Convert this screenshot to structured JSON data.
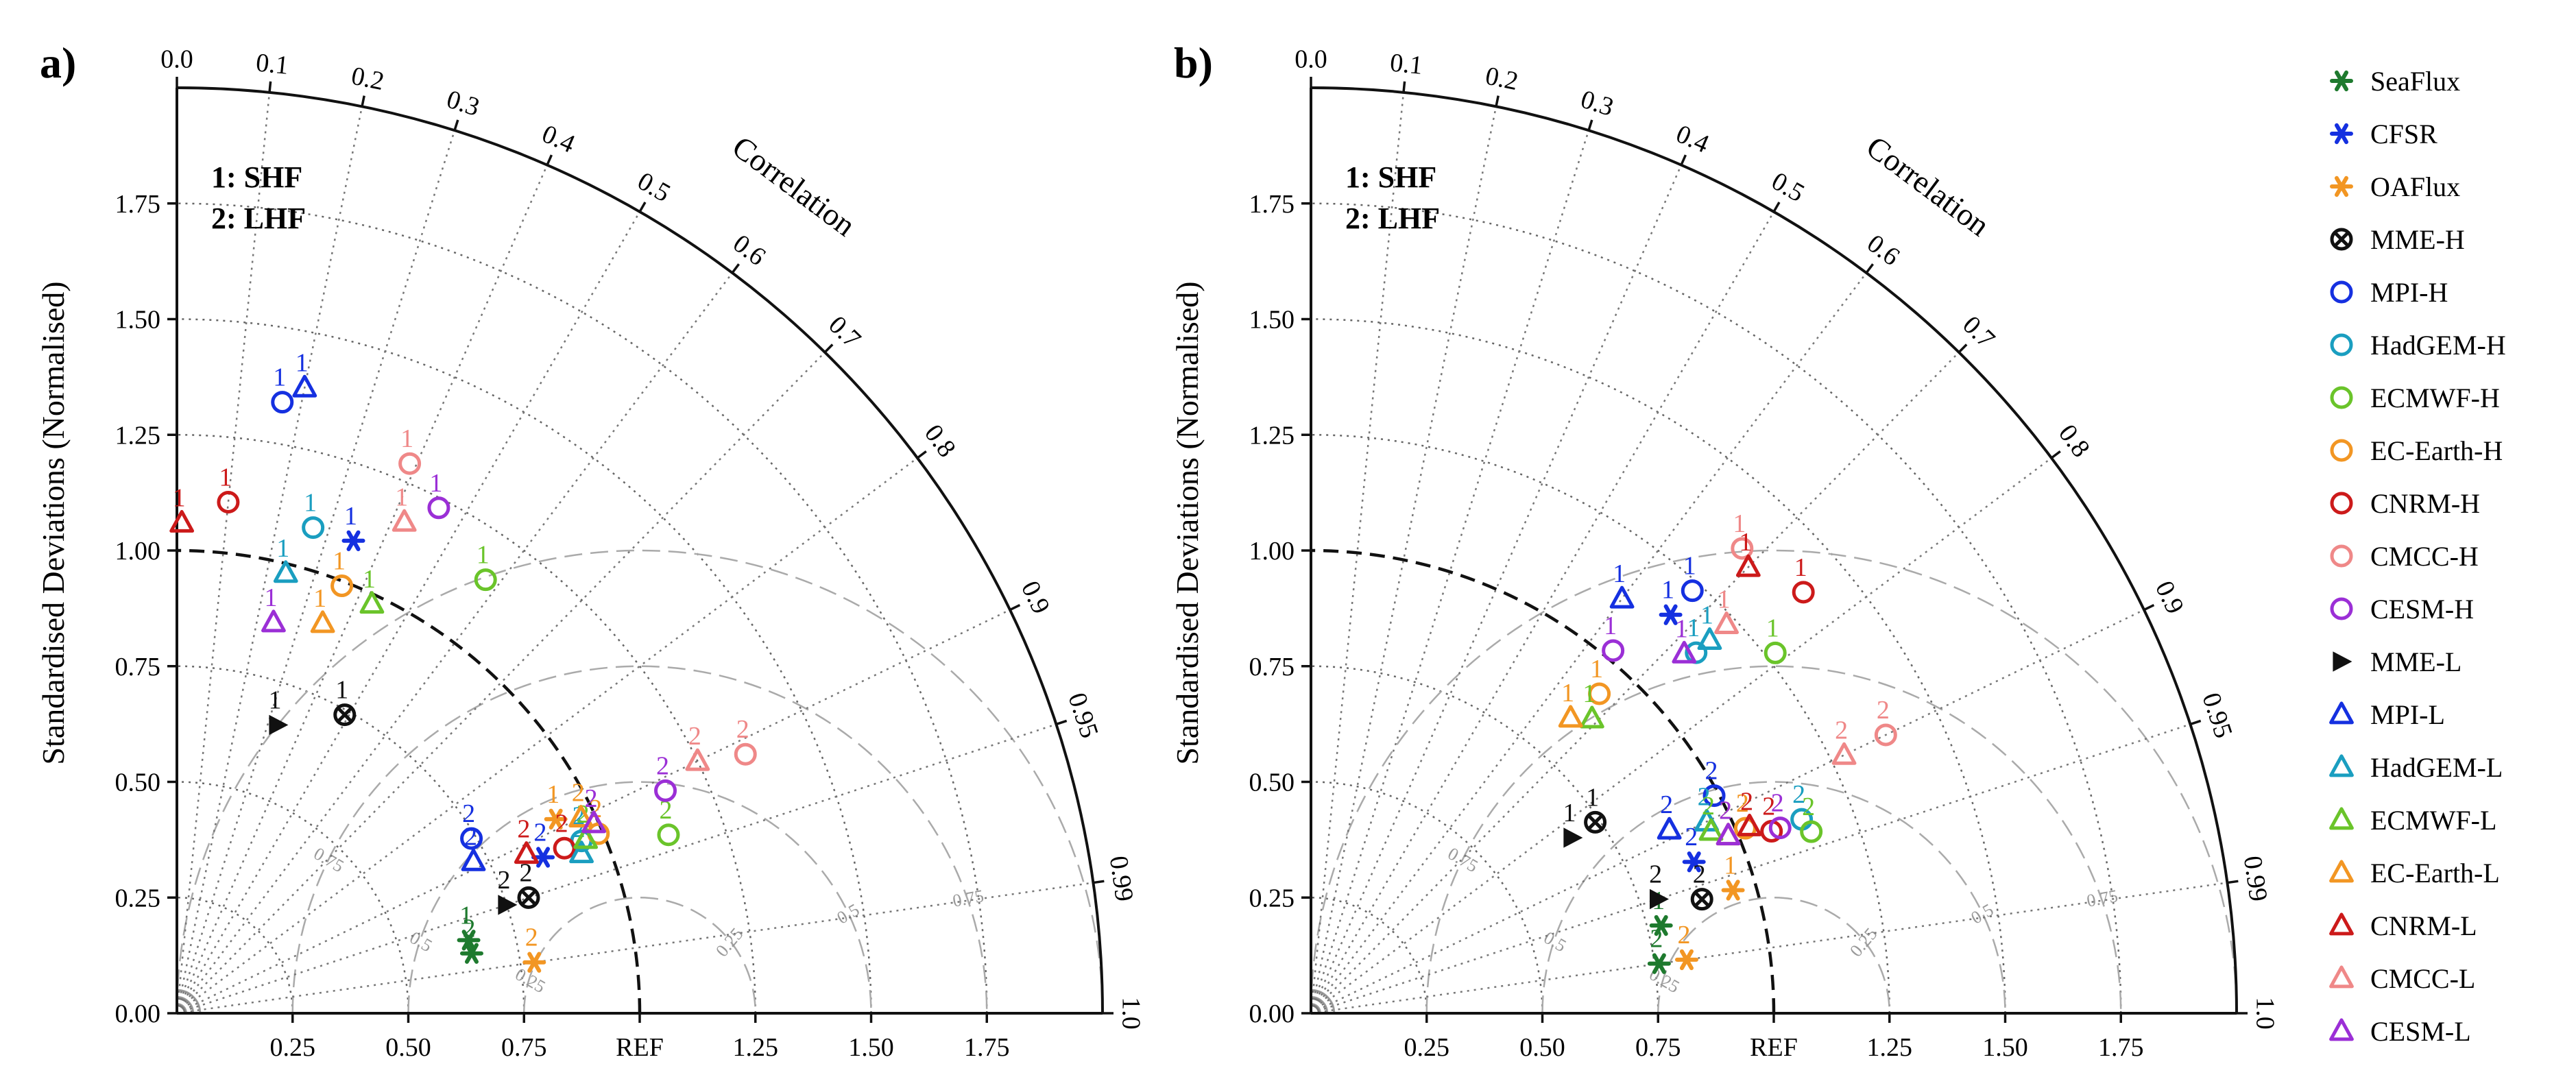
{
  "title": "",
  "figure": {
    "panels": [
      "a)",
      "b)"
    ],
    "ylabel": "Standardised Deviations (Normalised)",
    "correlation_label": "Correlation",
    "ref_label": "REF",
    "notes": [
      "1: SHF",
      "2: LHF"
    ],
    "std_ticks": [
      "0.00",
      "0.25",
      "0.50",
      "0.75",
      "1.00",
      "1.25",
      "1.50",
      "1.75"
    ],
    "x_ticks": [
      "0.25",
      "0.50",
      "0.75",
      "1.00",
      "1.25",
      "1.50",
      "1.75"
    ],
    "corr_ticks": [
      "0.0",
      "0.1",
      "0.2",
      "0.3",
      "0.4",
      "0.5",
      "0.6",
      "0.7",
      "0.8",
      "0.9",
      "0.95",
      "0.99",
      "1.0"
    ],
    "rmsd_labels": [
      "0.25",
      "0.5",
      "0.75"
    ]
  },
  "chart_data": [
    {
      "type": "taylor",
      "panel": "a)",
      "xlabel": "",
      "ylabel": "Standardised Deviations (Normalised)",
      "xlim": [
        0,
        2.0
      ],
      "ylim": [
        0,
        2.0
      ],
      "points": [
        {
          "model": "SeaFlux",
          "var": "1",
          "std": 0.65,
          "corr": 0.97
        },
        {
          "model": "SeaFlux",
          "var": "2",
          "std": 0.65,
          "corr": 0.98
        },
        {
          "model": "CFSR",
          "var": "1",
          "std": 1.09,
          "corr": 0.35
        },
        {
          "model": "CFSR",
          "var": "2",
          "std": 0.86,
          "corr": 0.92
        },
        {
          "model": "OAFlux",
          "var": "1",
          "std": 0.92,
          "corr": 0.89
        },
        {
          "model": "OAFlux",
          "var": "2",
          "std": 0.78,
          "corr": 0.99
        },
        {
          "model": "MME-H",
          "var": "1",
          "std": 0.74,
          "corr": 0.49
        },
        {
          "model": "MME-H",
          "var": "2",
          "std": 0.8,
          "corr": 0.95
        },
        {
          "model": "MPI-H",
          "var": "1",
          "std": 1.34,
          "corr": 0.17
        },
        {
          "model": "MPI-H",
          "var": "2",
          "std": 0.74,
          "corr": 0.86
        },
        {
          "model": "HadGEM-H",
          "var": "1",
          "std": 1.09,
          "corr": 0.27
        },
        {
          "model": "HadGEM-H",
          "var": "2",
          "std": 0.95,
          "corr": 0.92
        },
        {
          "model": "ECMWF-H",
          "var": "1",
          "std": 1.15,
          "corr": 0.58
        },
        {
          "model": "ECMWF-H",
          "var": "2",
          "std": 1.13,
          "corr": 0.94
        },
        {
          "model": "EC-Earth-H",
          "var": "1",
          "std": 0.99,
          "corr": 0.36
        },
        {
          "model": "EC-Earth-H",
          "var": "2",
          "std": 0.99,
          "corr": 0.92
        },
        {
          "model": "CNRM-H",
          "var": "1",
          "std": 1.11,
          "corr": 0.1
        },
        {
          "model": "CNRM-H",
          "var": "2",
          "std": 0.91,
          "corr": 0.92
        },
        {
          "model": "CMCC-H",
          "var": "1",
          "std": 1.29,
          "corr": 0.39
        },
        {
          "model": "CMCC-H",
          "var": "2",
          "std": 1.35,
          "corr": 0.91
        },
        {
          "model": "CESM-H",
          "var": "1",
          "std": 1.23,
          "corr": 0.46
        },
        {
          "model": "CESM-H",
          "var": "2",
          "std": 1.16,
          "corr": 0.91
        },
        {
          "model": "MME-L",
          "var": "1",
          "std": 0.66,
          "corr": 0.33
        },
        {
          "model": "MME-L",
          "var": "2",
          "std": 0.75,
          "corr": 0.95
        },
        {
          "model": "MPI-L",
          "var": "1",
          "std": 1.38,
          "corr": 0.2
        },
        {
          "model": "MPI-L",
          "var": "2",
          "std": 0.72,
          "corr": 0.89
        },
        {
          "model": "HadGEM-L",
          "var": "1",
          "std": 0.98,
          "corr": 0.24
        },
        {
          "model": "HadGEM-L",
          "var": "2",
          "std": 0.94,
          "corr": 0.93
        },
        {
          "model": "ECMWF-L",
          "var": "1",
          "std": 0.98,
          "corr": 0.43
        },
        {
          "model": "ECMWF-L",
          "var": "2",
          "std": 0.96,
          "corr": 0.92
        },
        {
          "model": "EC-Earth-L",
          "var": "1",
          "std": 0.9,
          "corr": 0.35
        },
        {
          "model": "EC-Earth-L",
          "var": "2",
          "std": 0.97,
          "corr": 0.9
        },
        {
          "model": "CNRM-L",
          "var": "1",
          "std": 1.06,
          "corr": 0.01
        },
        {
          "model": "CNRM-L",
          "var": "2",
          "std": 0.83,
          "corr": 0.91
        },
        {
          "model": "CMCC-L",
          "var": "1",
          "std": 1.17,
          "corr": 0.42
        },
        {
          "model": "CMCC-L",
          "var": "2",
          "std": 1.25,
          "corr": 0.9
        },
        {
          "model": "CESM-L",
          "var": "1",
          "std": 0.87,
          "corr": 0.24
        },
        {
          "model": "CESM-L",
          "var": "2",
          "std": 0.99,
          "corr": 0.91
        }
      ]
    },
    {
      "type": "taylor",
      "panel": "b)",
      "xlabel": "",
      "ylabel": "Standardised Deviations (Normalised)",
      "xlim": [
        0,
        2.0
      ],
      "ylim": [
        0,
        2.0
      ],
      "points": [
        {
          "model": "SeaFlux",
          "var": "1",
          "std": 0.78,
          "corr": 0.97
        },
        {
          "model": "SeaFlux",
          "var": "2",
          "std": 0.76,
          "corr": 0.99
        },
        {
          "model": "CFSR",
          "var": "1",
          "std": 1.16,
          "corr": 0.67
        },
        {
          "model": "CFSR",
          "var": "2",
          "std": 0.89,
          "corr": 0.93
        },
        {
          "model": "OAFlux",
          "var": "1",
          "std": 0.95,
          "corr": 0.96
        },
        {
          "model": "OAFlux",
          "var": "2",
          "std": 0.82,
          "corr": 0.99
        },
        {
          "model": "MME-H",
          "var": "1",
          "std": 0.74,
          "corr": 0.83
        },
        {
          "model": "MME-H",
          "var": "2",
          "std": 0.88,
          "corr": 0.96
        },
        {
          "model": "MPI-H",
          "var": "1",
          "std": 1.23,
          "corr": 0.67
        },
        {
          "model": "MPI-H",
          "var": "2",
          "std": 0.99,
          "corr": 0.88
        },
        {
          "model": "HadGEM-H",
          "var": "1",
          "std": 1.14,
          "corr": 0.73
        },
        {
          "model": "HadGEM-H",
          "var": "2",
          "std": 1.14,
          "corr": 0.93
        },
        {
          "model": "ECMWF-H",
          "var": "1",
          "std": 1.27,
          "corr": 0.79
        },
        {
          "model": "ECMWF-H",
          "var": "2",
          "std": 1.15,
          "corr": 0.94
        },
        {
          "model": "EC-Earth-H",
          "var": "1",
          "std": 0.93,
          "corr": 0.67
        },
        {
          "model": "EC-Earth-H",
          "var": "2",
          "std": 1.02,
          "corr": 0.92
        },
        {
          "model": "CNRM-H",
          "var": "1",
          "std": 1.4,
          "corr": 0.76
        },
        {
          "model": "CNRM-H",
          "var": "2",
          "std": 1.07,
          "corr": 0.93
        },
        {
          "model": "CMCC-H",
          "var": "1",
          "std": 1.37,
          "corr": 0.68
        },
        {
          "model": "CMCC-H",
          "var": "2",
          "std": 1.38,
          "corr": 0.9
        },
        {
          "model": "CESM-H",
          "var": "1",
          "std": 1.02,
          "corr": 0.64
        },
        {
          "model": "CESM-H",
          "var": "2",
          "std": 1.09,
          "corr": 0.93
        },
        {
          "model": "MME-L",
          "var": "1",
          "std": 0.68,
          "corr": 0.83
        },
        {
          "model": "MME-L",
          "var": "2",
          "std": 0.79,
          "corr": 0.95
        },
        {
          "model": "MPI-L",
          "var": "1",
          "std": 1.12,
          "corr": 0.6
        },
        {
          "model": "MPI-L",
          "var": "2",
          "std": 0.87,
          "corr": 0.89
        },
        {
          "model": "HadGEM-L",
          "var": "1",
          "std": 1.18,
          "corr": 0.73
        },
        {
          "model": "HadGEM-L",
          "var": "2",
          "std": 0.95,
          "corr": 0.9
        },
        {
          "model": "ECMWF-L",
          "var": "1",
          "std": 0.88,
          "corr": 0.69
        },
        {
          "model": "ECMWF-L",
          "var": "2",
          "std": 0.95,
          "corr": 0.91
        },
        {
          "model": "EC-Earth-L",
          "var": "1",
          "std": 0.85,
          "corr": 0.66
        },
        {
          "model": "EC-Earth-L",
          "var": "2",
          "std": 0.98,
          "corr": 0.92
        },
        {
          "model": "CNRM-L",
          "var": "1",
          "std": 1.35,
          "corr": 0.7
        },
        {
          "model": "CNRM-L",
          "var": "2",
          "std": 1.03,
          "corr": 0.92
        },
        {
          "model": "CMCC-L",
          "var": "1",
          "std": 1.23,
          "corr": 0.73
        },
        {
          "model": "CMCC-L",
          "var": "2",
          "std": 1.28,
          "corr": 0.9
        },
        {
          "model": "CESM-L",
          "var": "1",
          "std": 1.12,
          "corr": 0.72
        },
        {
          "model": "CESM-L",
          "var": "2",
          "std": 0.98,
          "corr": 0.92
        }
      ]
    }
  ],
  "legend": {
    "position": "right",
    "entries": [
      {
        "label": "SeaFlux",
        "marker": "asterisk",
        "color": "#1e7a2e"
      },
      {
        "label": "CFSR",
        "marker": "asterisk",
        "color": "#1530e0"
      },
      {
        "label": "OAFlux",
        "marker": "asterisk",
        "color": "#f29623"
      },
      {
        "label": "MME-H",
        "marker": "otimes",
        "color": "#111111"
      },
      {
        "label": "MPI-H",
        "marker": "circle",
        "color": "#1530e0"
      },
      {
        "label": "HadGEM-H",
        "marker": "circle",
        "color": "#1a9ec0"
      },
      {
        "label": "ECMWF-H",
        "marker": "circle",
        "color": "#6ac42a"
      },
      {
        "label": "EC-Earth-H",
        "marker": "circle",
        "color": "#f29623"
      },
      {
        "label": "CNRM-H",
        "marker": "circle",
        "color": "#cc1a1a"
      },
      {
        "label": "CMCC-H",
        "marker": "circle",
        "color": "#ef8888"
      },
      {
        "label": "CESM-H",
        "marker": "circle",
        "color": "#9b2fd6"
      },
      {
        "label": "MME-L",
        "marker": "play",
        "color": "#111111"
      },
      {
        "label": "MPI-L",
        "marker": "triangle",
        "color": "#1530e0"
      },
      {
        "label": "HadGEM-L",
        "marker": "triangle",
        "color": "#1a9ec0"
      },
      {
        "label": "ECMWF-L",
        "marker": "triangle",
        "color": "#6ac42a"
      },
      {
        "label": "EC-Earth-L",
        "marker": "triangle",
        "color": "#f29623"
      },
      {
        "label": "CNRM-L",
        "marker": "triangle",
        "color": "#cc1a1a"
      },
      {
        "label": "CMCC-L",
        "marker": "triangle",
        "color": "#ef8888"
      },
      {
        "label": "CESM-L",
        "marker": "triangle",
        "color": "#9b2fd6"
      }
    ]
  }
}
